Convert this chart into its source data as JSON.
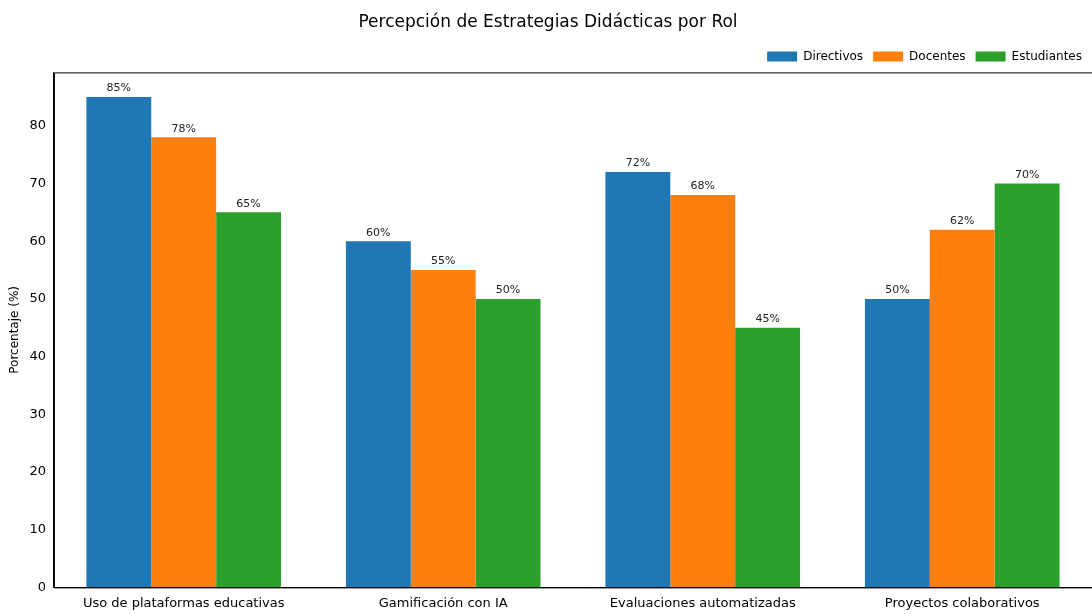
{
  "chart_data": {
    "type": "bar",
    "title": "Percepción de Estrategias Didácticas por Rol",
    "ylabel": "Porcentaje (%)",
    "categories": [
      "Uso de plataformas educativas",
      "Gamificación con IA",
      "Evaluaciones automatizadas",
      "Proyectos colaborativos"
    ],
    "series": [
      {
        "name": "Directivos",
        "color": "#1f77b4",
        "values": [
          85,
          60,
          72,
          50
        ],
        "value_labels": [
          "85%",
          "60%",
          "72%",
          "50%"
        ]
      },
      {
        "name": "Docentes",
        "color": "#ff7f0e",
        "values": [
          78,
          55,
          68,
          62
        ],
        "value_labels": [
          "78%",
          "55%",
          "68%",
          "62%"
        ]
      },
      {
        "name": "Estudiantes",
        "color": "#2ca02c",
        "values": [
          65,
          50,
          45,
          70
        ],
        "value_labels": [
          "65%",
          "50%",
          "45%",
          "70%"
        ]
      }
    ],
    "ylim": [
      0,
      89.25
    ],
    "yticks": [
      0,
      10,
      20,
      30,
      40,
      50,
      60,
      70,
      80
    ],
    "grid": false,
    "legend": "top right"
  }
}
